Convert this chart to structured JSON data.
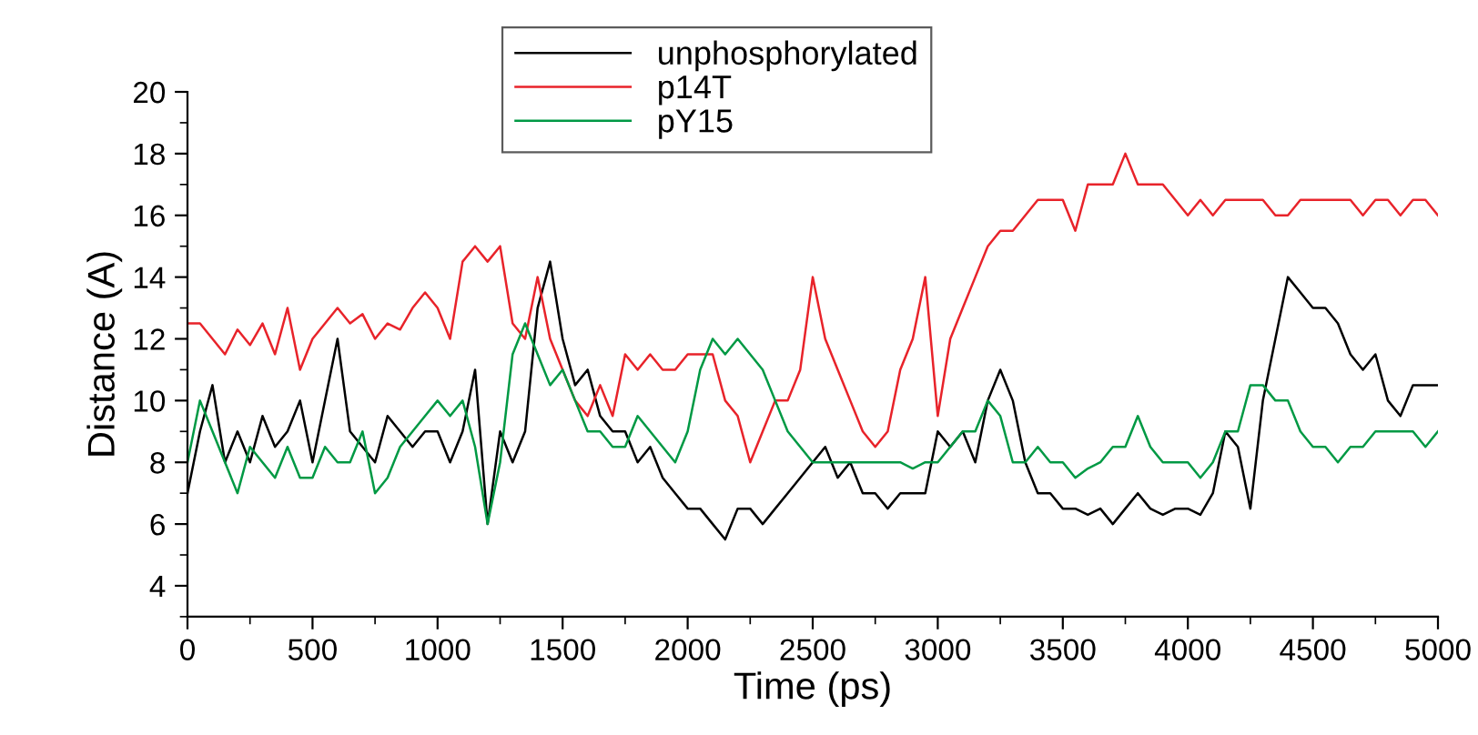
{
  "chart_data": {
    "type": "line",
    "xlabel": "Time (ps)",
    "ylabel": "Distance (A)",
    "x": [
      0,
      50,
      100,
      150,
      200,
      250,
      300,
      350,
      400,
      450,
      500,
      550,
      600,
      650,
      700,
      750,
      800,
      850,
      900,
      950,
      1000,
      1050,
      1100,
      1150,
      1200,
      1250,
      1300,
      1350,
      1400,
      1450,
      1500,
      1550,
      1600,
      1650,
      1700,
      1750,
      1800,
      1850,
      1900,
      1950,
      2000,
      2050,
      2100,
      2150,
      2200,
      2250,
      2300,
      2350,
      2400,
      2450,
      2500,
      2550,
      2600,
      2650,
      2700,
      2750,
      2800,
      2850,
      2900,
      2950,
      3000,
      3050,
      3100,
      3150,
      3200,
      3250,
      3300,
      3350,
      3400,
      3450,
      3500,
      3550,
      3600,
      3650,
      3700,
      3750,
      3800,
      3850,
      3900,
      3950,
      4000,
      4050,
      4100,
      4150,
      4200,
      4250,
      4300,
      4350,
      4400,
      4450,
      4500,
      4550,
      4600,
      4650,
      4700,
      4750,
      4800,
      4850,
      4900,
      4950,
      5000
    ],
    "series": [
      {
        "name": "unphosphorylated",
        "color": "#000000",
        "values": [
          7,
          9,
          10.5,
          8,
          9,
          8,
          9.5,
          8.5,
          9,
          10,
          8,
          10,
          12,
          9,
          8.5,
          8,
          9.5,
          9,
          8.5,
          9,
          9,
          8,
          9,
          11,
          6,
          9,
          8,
          9,
          13,
          14.5,
          12,
          10.5,
          11,
          9.5,
          9,
          9,
          8,
          8.5,
          7.5,
          7,
          6.5,
          6.5,
          6,
          5.5,
          6.5,
          6.5,
          6,
          6.5,
          7,
          7.5,
          8,
          8.5,
          7.5,
          8,
          7,
          7,
          6.5,
          7,
          7,
          7,
          9,
          8.5,
          9,
          8,
          10,
          11,
          10,
          8,
          7,
          7,
          6.5,
          6.5,
          6.3,
          6.5,
          6,
          6.5,
          7,
          6.5,
          6.3,
          6.5,
          6.5,
          6.3,
          7,
          9,
          8.5,
          6.5,
          10,
          12,
          14,
          13.5,
          13,
          13,
          12.5,
          11.5,
          11,
          11.5,
          10,
          9.5,
          10.5,
          10.5,
          10.5
        ]
      },
      {
        "name": "p14T",
        "color": "#e8232a",
        "values": [
          12.5,
          12.5,
          12,
          11.5,
          12.3,
          11.8,
          12.5,
          11.5,
          13,
          11,
          12,
          12.5,
          13,
          12.5,
          12.8,
          12,
          12.5,
          12.3,
          13,
          13.5,
          13,
          12,
          14.5,
          15,
          14.5,
          15,
          12.5,
          12,
          14,
          12,
          11,
          10,
          9.5,
          10.5,
          9.5,
          11.5,
          11,
          11.5,
          11,
          11,
          11.5,
          11.5,
          11.5,
          10,
          9.5,
          8,
          9,
          10,
          10,
          11,
          14,
          12,
          11,
          10,
          9,
          8.5,
          9,
          11,
          12,
          14,
          9.5,
          12,
          13,
          14,
          15,
          15.5,
          15.5,
          16,
          16.5,
          16.5,
          16.5,
          15.5,
          17,
          17,
          17,
          18,
          17,
          17,
          17,
          16.5,
          16,
          16.5,
          16,
          16.5,
          16.5,
          16.5,
          16.5,
          16,
          16,
          16.5,
          16.5,
          16.5,
          16.5,
          16.5,
          16,
          16.5,
          16.5,
          16,
          16.5,
          16.5,
          16
        ]
      },
      {
        "name": "pY15",
        "color": "#009944",
        "values": [
          8,
          10,
          9,
          8,
          7,
          8.5,
          8,
          7.5,
          8.5,
          7.5,
          7.5,
          8.5,
          8,
          8,
          9,
          7,
          7.5,
          8.5,
          9,
          9.5,
          10,
          9.5,
          10,
          8.5,
          6,
          8,
          11.5,
          12.5,
          11.5,
          10.5,
          11,
          10,
          9,
          9,
          8.5,
          8.5,
          9.5,
          9,
          8.5,
          8,
          9,
          11,
          12,
          11.5,
          12,
          11.5,
          11,
          10,
          9,
          8.5,
          8,
          8,
          8,
          8,
          8,
          8,
          8,
          8,
          7.8,
          8,
          8,
          8.5,
          9,
          9,
          10,
          9.5,
          8,
          8,
          8.5,
          8,
          8,
          7.5,
          7.8,
          8,
          8.5,
          8.5,
          9.5,
          8.5,
          8,
          8,
          8,
          7.5,
          8,
          9,
          9,
          10.5,
          10.5,
          10,
          10,
          9,
          8.5,
          8.5,
          8,
          8.5,
          8.5,
          9,
          9,
          9,
          9,
          8.5,
          9
        ]
      }
    ],
    "xlim": [
      0,
      5000
    ],
    "xticks": [
      0,
      500,
      1000,
      1500,
      2000,
      2500,
      3000,
      3500,
      4000,
      4500,
      5000
    ],
    "ylim": [
      3,
      20
    ],
    "yticks": [
      4,
      6,
      8,
      10,
      12,
      14,
      16,
      18,
      20
    ],
    "legend": "top",
    "line_style": "solid"
  }
}
